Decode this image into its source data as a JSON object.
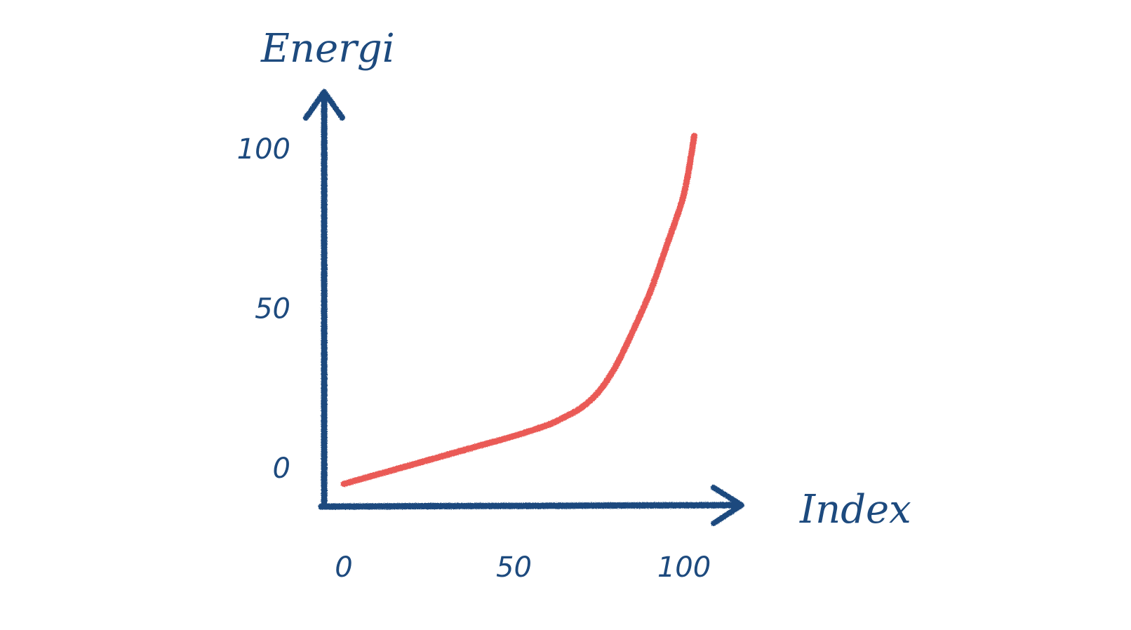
{
  "colors": {
    "axis": "#1d4a7e",
    "series": "#ea5a56",
    "background": "#ffffff"
  },
  "chart_data": {
    "type": "line",
    "title": "",
    "xlabel": "Index",
    "ylabel": "Energi",
    "xlim": [
      0,
      110
    ],
    "ylim": [
      -10,
      110
    ],
    "x_ticks": [
      0,
      50,
      100
    ],
    "y_ticks": [
      0,
      50,
      100
    ],
    "x_tick_labels": [
      "0",
      "50",
      "100"
    ],
    "y_tick_labels": [
      "0",
      "50",
      "100"
    ],
    "grid": false,
    "legend": "none",
    "series": [
      {
        "x": [
          0,
          10,
          20,
          30,
          40,
          50,
          60,
          65,
          70,
          75,
          80,
          85,
          90,
          95,
          100,
          103
        ],
        "y": [
          -5,
          -2,
          1,
          4,
          7,
          10,
          13.5,
          16,
          19,
          24,
          32,
          43,
          55,
          70,
          86,
          104
        ]
      }
    ]
  }
}
